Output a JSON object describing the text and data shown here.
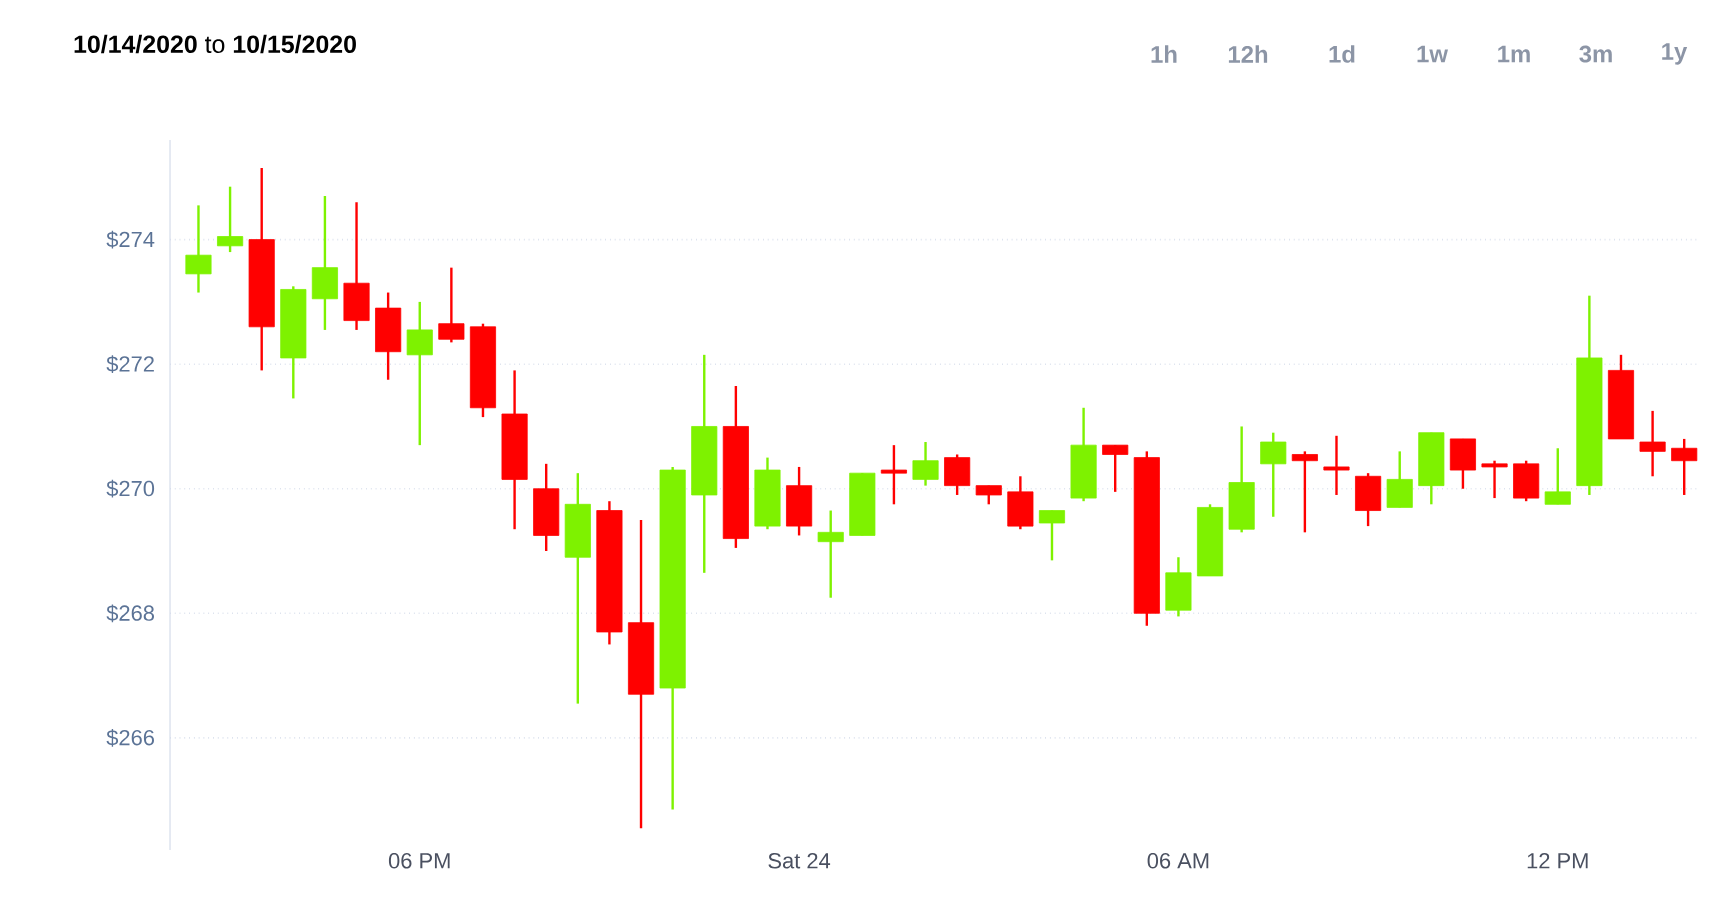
{
  "chart_data": {
    "type": "candlestick",
    "title": "**10/14/2020** to **10/15/2020**",
    "annotations": [
      "1h",
      "12h",
      "1d",
      "1w",
      "1m",
      "3m",
      "1y"
    ],
    "categories": [
      null,
      null,
      null,
      null,
      null,
      null,
      null,
      "06 PM",
      null,
      null,
      null,
      null,
      null,
      null,
      null,
      null,
      null,
      null,
      null,
      "Sat 24",
      null,
      null,
      null,
      null,
      null,
      null,
      null,
      null,
      null,
      null,
      null,
      "06 AM",
      null,
      null,
      null,
      null,
      null,
      null,
      null,
      null,
      null,
      null,
      null,
      "12 PM",
      null,
      null,
      null,
      null
    ],
    "ohlc": [
      [
        273.45,
        274.55,
        273.15,
        273.75
      ],
      [
        273.9,
        274.85,
        273.8,
        274.05
      ],
      [
        274.0,
        275.15,
        271.9,
        272.6
      ],
      [
        272.1,
        273.25,
        271.45,
        273.2
      ],
      [
        273.05,
        274.7,
        272.55,
        273.55
      ],
      [
        273.3,
        274.6,
        272.55,
        272.7
      ],
      [
        272.9,
        273.15,
        271.75,
        272.2
      ],
      [
        272.15,
        273.0,
        270.7,
        272.55
      ],
      [
        272.65,
        273.55,
        272.35,
        272.4
      ],
      [
        272.6,
        272.65,
        271.15,
        271.3
      ],
      [
        271.2,
        271.9,
        269.35,
        270.15
      ],
      [
        270.0,
        270.4,
        269.0,
        269.25
      ],
      [
        268.9,
        270.25,
        266.55,
        269.75
      ],
      [
        269.65,
        269.8,
        267.5,
        267.7
      ],
      [
        267.85,
        269.5,
        264.55,
        266.7
      ],
      [
        266.8,
        270.35,
        264.85,
        270.3
      ],
      [
        269.9,
        272.15,
        268.65,
        271.0
      ],
      [
        271.0,
        271.65,
        269.05,
        269.2
      ],
      [
        269.4,
        270.5,
        269.35,
        270.3
      ],
      [
        270.05,
        270.35,
        269.25,
        269.4
      ],
      [
        269.15,
        269.65,
        268.25,
        269.3
      ],
      [
        269.25,
        270.25,
        269.25,
        270.25
      ],
      [
        270.3,
        270.7,
        269.75,
        270.25
      ],
      [
        270.15,
        270.75,
        270.05,
        270.45
      ],
      [
        270.5,
        270.55,
        269.9,
        270.05
      ],
      [
        270.05,
        270.05,
        269.75,
        269.9
      ],
      [
        269.95,
        270.2,
        269.35,
        269.4
      ],
      [
        269.45,
        269.65,
        268.85,
        269.65
      ],
      [
        269.85,
        271.3,
        269.8,
        270.7
      ],
      [
        270.7,
        270.7,
        269.95,
        270.55
      ],
      [
        270.5,
        270.6,
        267.8,
        268.0
      ],
      [
        268.05,
        268.9,
        267.95,
        268.65
      ],
      [
        268.6,
        269.75,
        268.6,
        269.7
      ],
      [
        269.35,
        271.0,
        269.3,
        270.1
      ],
      [
        270.4,
        270.9,
        269.55,
        270.75
      ],
      [
        270.55,
        270.6,
        269.3,
        270.45
      ],
      [
        270.35,
        270.85,
        269.9,
        270.3
      ],
      [
        270.2,
        270.25,
        269.4,
        269.65
      ],
      [
        269.7,
        270.6,
        269.7,
        270.15
      ],
      [
        270.05,
        270.9,
        269.75,
        270.9
      ],
      [
        270.8,
        270.8,
        270.0,
        270.3
      ],
      [
        270.4,
        270.45,
        269.85,
        270.35
      ],
      [
        270.4,
        270.45,
        269.8,
        269.85
      ],
      [
        269.75,
        270.65,
        269.75,
        269.95
      ],
      [
        270.05,
        273.1,
        269.9,
        272.1
      ],
      [
        271.9,
        272.15,
        270.8,
        270.8
      ],
      [
        270.75,
        271.25,
        270.2,
        270.6
      ],
      [
        270.65,
        270.8,
        269.9,
        270.45
      ]
    ],
    "colors": [
      "#7ef200",
      "#7ef200",
      "#ff0000",
      "#7ef200",
      "#7ef200",
      "#ff0000",
      "#ff0000",
      "#7ef200",
      "#ff0000",
      "#ff0000",
      "#ff0000",
      "#ff0000",
      "#7ef200",
      "#ff0000",
      "#ff0000",
      "#7ef200",
      "#7ef200",
      "#ff0000",
      "#7ef200",
      "#ff0000",
      "#7ef200",
      "#7ef200",
      "#ff0000",
      "#7ef200",
      "#ff0000",
      "#ff0000",
      "#ff0000",
      "#7ef200",
      "#7ef200",
      "#ff0000",
      "#ff0000",
      "#7ef200",
      "#7ef200",
      "#7ef200",
      "#7ef200",
      "#ff0000",
      "#ff0000",
      "#ff0000",
      "#7ef200",
      "#7ef200",
      "#ff0000",
      "#ff0000",
      "#ff0000",
      "#7ef200",
      "#7ef200",
      "#ff0000",
      "#ff0000",
      "#ff0000"
    ],
    "ylim": [
      264.2,
      275.6
    ],
    "yticks": [
      {
        "value": 266,
        "label": "$266"
      },
      {
        "value": 268,
        "label": "$268"
      },
      {
        "value": 270,
        "label": "$270"
      },
      {
        "value": 272,
        "label": "$272"
      },
      {
        "value": 274,
        "label": "$274"
      }
    ],
    "grid": "y"
  }
}
